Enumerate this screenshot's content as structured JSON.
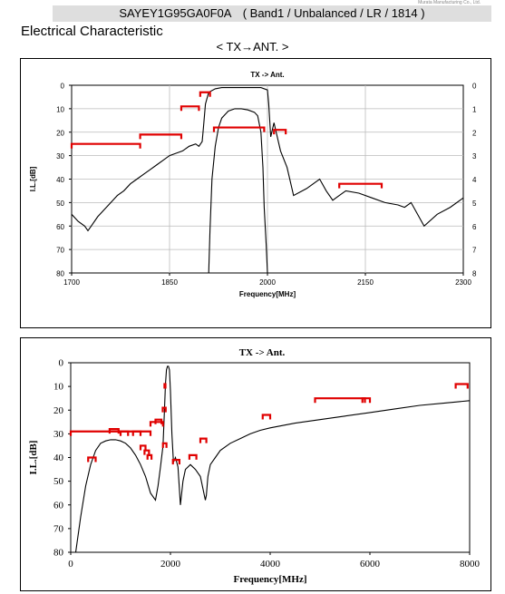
{
  "header": {
    "title": "SAYEY1G95GA0F0A　( Band1 / Unbalanced / LR / 1814 )",
    "corner_note": "Murata Manufacturing Co., Ltd."
  },
  "section_title": "Electrical Characteristic",
  "direction_label": "< TX→ANT. >",
  "colors": {
    "trace": "#000000",
    "spec": "#e00000",
    "grid": "#bbbbbb"
  },
  "chart_data": [
    {
      "type": "line",
      "title": "TX -> Ant.",
      "xlabel": "Frequency[MHz]",
      "ylabel": "I.L.[dB]",
      "xlim": [
        1700,
        2300
      ],
      "ylim": [
        0,
        80
      ],
      "y_inverted": true,
      "y2lim": [
        0,
        8
      ],
      "xticks": [
        1700,
        1850,
        2000,
        2150,
        2300
      ],
      "yticks": [
        0,
        10,
        20,
        30,
        40,
        50,
        60,
        70,
        80
      ],
      "y2ticks": [
        0,
        1,
        2,
        3,
        4,
        5,
        6,
        7,
        8
      ],
      "grid": true,
      "series": [
        {
          "axis": "left",
          "x": [
            1700,
            1710,
            1720,
            1725,
            1730,
            1740,
            1750,
            1760,
            1770,
            1780,
            1790,
            1800,
            1810,
            1820,
            1830,
            1840,
            1850,
            1860,
            1870,
            1880,
            1890,
            1895,
            1900,
            1902,
            1905,
            1910,
            1920,
            1930,
            1940,
            1950,
            1960,
            1970,
            1980,
            1990,
            2000,
            2002,
            2005,
            2010,
            2015,
            2020,
            2030,
            2040,
            2060,
            2080,
            2090,
            2100,
            2110,
            2120,
            2140,
            2160,
            2180,
            2200,
            2210,
            2220,
            2240,
            2260,
            2280,
            2300
          ],
          "y": [
            55,
            58,
            60,
            62,
            60,
            56,
            53,
            50,
            47,
            45,
            42,
            40,
            38,
            36,
            34,
            32,
            30,
            29,
            28,
            26,
            25,
            26,
            24,
            18,
            8,
            3,
            1.5,
            1,
            1,
            1,
            1,
            1,
            1,
            1,
            2,
            8,
            22,
            16,
            22,
            28,
            35,
            47,
            44,
            40,
            45,
            49,
            47,
            45,
            46,
            48,
            50,
            51,
            52,
            50,
            60,
            55,
            52,
            48
          ]
        },
        {
          "axis": "right",
          "x": [
            1910,
            1912,
            1915,
            1920,
            1925,
            1930,
            1940,
            1950,
            1960,
            1970,
            1980,
            1985,
            1990,
            1993,
            1995,
            1998,
            2000
          ],
          "y": [
            8.0,
            6.2,
            4.0,
            2.6,
            1.8,
            1.4,
            1.1,
            1.0,
            1.0,
            1.05,
            1.15,
            1.3,
            2.0,
            3.5,
            5.2,
            6.8,
            8.0
          ]
        }
      ],
      "spec_limits": [
        {
          "x": [
            1700,
            1805
          ],
          "y": 25
        },
        {
          "x": [
            1805,
            1868
          ],
          "y": 21
        },
        {
          "x": [
            1868,
            1895
          ],
          "y": 9
        },
        {
          "x": [
            1897,
            1912
          ],
          "y": 3
        },
        {
          "x": [
            1918,
            1995
          ],
          "y": 18
        },
        {
          "x": [
            2010,
            2028
          ],
          "y": 19
        },
        {
          "x": [
            2110,
            2175
          ],
          "y": 42
        }
      ]
    },
    {
      "type": "line",
      "title": "TX -> Ant.",
      "xlabel": "Frequency[MHz]",
      "ylabel": "I.L.[dB]",
      "xlim": [
        0,
        8000
      ],
      "ylim": [
        0,
        80
      ],
      "y_inverted": true,
      "xticks": [
        0,
        2000,
        4000,
        6000,
        8000
      ],
      "yticks": [
        0,
        10,
        20,
        30,
        40,
        50,
        60,
        70,
        80
      ],
      "grid": false,
      "series": [
        {
          "x": [
            100,
            200,
            300,
            400,
            500,
            600,
            700,
            800,
            900,
            1000,
            1100,
            1200,
            1300,
            1400,
            1500,
            1600,
            1700,
            1750,
            1800,
            1850,
            1880,
            1900,
            1920,
            1940,
            1960,
            1980,
            2000,
            2030,
            2060,
            2100,
            2150,
            2200,
            2250,
            2300,
            2400,
            2500,
            2600,
            2700,
            2720,
            2750,
            2800,
            2900,
            3000,
            3200,
            3400,
            3600,
            3800,
            4000,
            4500,
            5000,
            5500,
            6000,
            6500,
            7000,
            7500,
            8000
          ],
          "y": [
            80,
            65,
            52,
            43,
            37,
            34,
            33,
            32.5,
            32.5,
            33,
            34,
            36,
            39,
            43,
            48,
            55,
            58,
            52,
            44,
            35,
            20,
            9,
            3,
            1.5,
            1.5,
            3,
            12,
            30,
            42,
            40,
            44,
            60,
            50,
            45,
            43,
            45,
            48,
            58,
            56,
            48,
            43,
            40,
            37,
            34,
            32,
            30,
            28.5,
            27.5,
            25.5,
            24,
            22.5,
            21,
            19.5,
            18,
            17,
            16
          ]
        }
      ],
      "spec_limits": [
        {
          "x": [
            0,
            1600
          ],
          "y": 29
        },
        {
          "x": [
            1600,
            1850
          ],
          "y": 25
        },
        {
          "x": [
            1845,
            1905
          ],
          "y": 19
        },
        {
          "x": [
            1880,
            1900
          ],
          "y": 9
        },
        {
          "x": [
            1850,
            1920
          ],
          "y": 34
        },
        {
          "x": [
            2050,
            2180
          ],
          "y": 41
        },
        {
          "x": [
            2380,
            2520
          ],
          "y": 39
        },
        {
          "x": [
            2600,
            2720
          ],
          "y": 32
        },
        {
          "x": [
            3850,
            4000
          ],
          "y": 22
        },
        {
          "x": [
            4900,
            5900
          ],
          "y": 15
        },
        {
          "x": [
            5850,
            6000
          ],
          "y": 15
        },
        {
          "x": [
            7720,
            7960
          ],
          "y": 9
        },
        {
          "x": [
            350,
            500
          ],
          "y": 40
        },
        {
          "x": [
            1000,
            1150
          ],
          "y": 29
        },
        {
          "x": [
            1250,
            1400
          ],
          "y": 29
        },
        {
          "x": [
            1400,
            1500
          ],
          "y": 35
        },
        {
          "x": [
            1480,
            1570
          ],
          "y": 37
        },
        {
          "x": [
            1540,
            1620
          ],
          "y": 39
        },
        {
          "x": [
            780,
            960
          ],
          "y": 28
        },
        {
          "x": [
            1700,
            1820
          ],
          "y": 24
        }
      ]
    }
  ]
}
